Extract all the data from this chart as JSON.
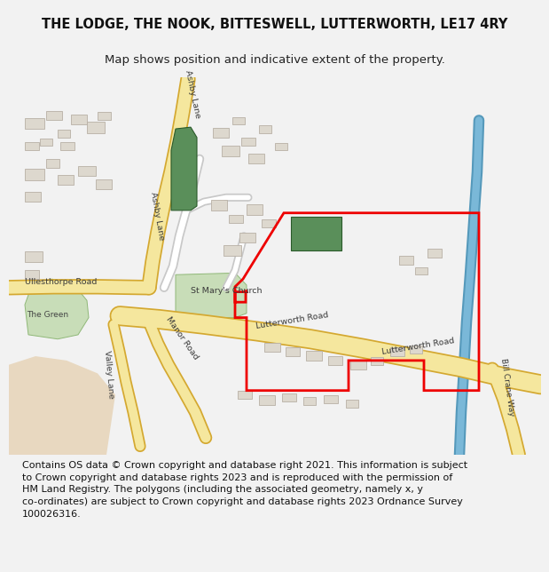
{
  "title": "THE LODGE, THE NOOK, BITTESWELL, LUTTERWORTH, LE17 4RY",
  "subtitle": "Map shows position and indicative extent of the property.",
  "footer": "Contains OS data © Crown copyright and database right 2021. This information is subject\nto Crown copyright and database rights 2023 and is reproduced with the permission of\nHM Land Registry. The polygons (including the associated geometry, namely x, y\nco-ordinates) are subject to Crown copyright and database rights 2023 Ordnance Survey\n100026316.",
  "bg_color": "#f2f2f2",
  "map_bg": "#ffffff",
  "title_fontsize": 10.5,
  "subtitle_fontsize": 9.5,
  "footer_fontsize": 8.0,
  "road_major_fill": "#f5e79e",
  "road_major_outline": "#d4a830",
  "road_minor_fill": "#ffffff",
  "road_minor_outline": "#c8c8c8",
  "green_dark": "#5a8f5a",
  "green_light": "#c8ddb8",
  "red_color": "#ee0000",
  "blue_color": "#7ab8d8",
  "building_fill": "#ddd8ce",
  "building_edge": "#b8b0a5",
  "beige_area": "#e8d8c0"
}
